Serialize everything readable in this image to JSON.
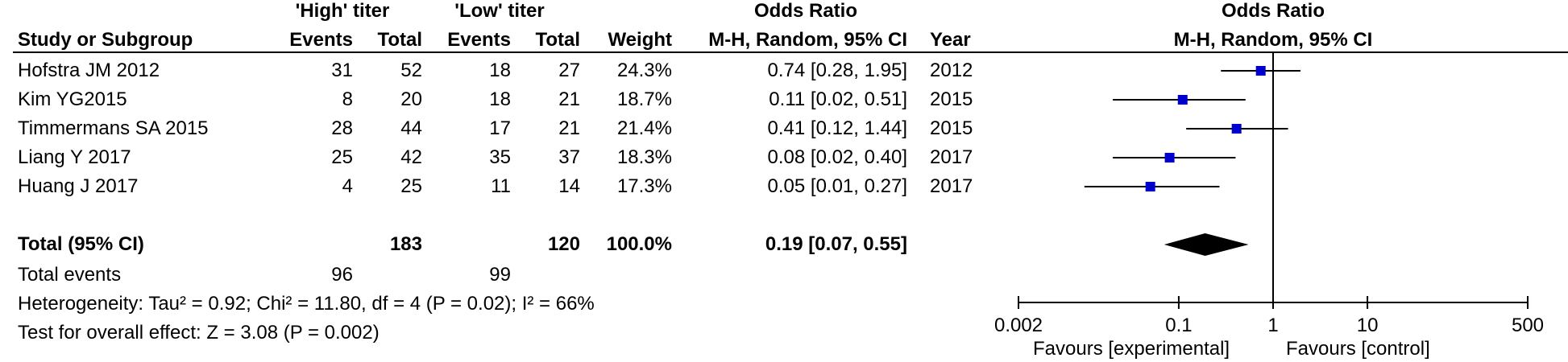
{
  "header": {
    "group_high": "'High' titer",
    "group_low": "'Low' titer",
    "odds_ratio": "Odds Ratio",
    "study_col": "Study or Subgroup",
    "events": "Events",
    "total": "Total",
    "weight": "Weight",
    "method": "M-H, Random, 95% CI",
    "year": "Year",
    "plot_title": "Odds Ratio",
    "plot_method": "M-H, Random, 95% CI"
  },
  "rows": [
    {
      "study": "Hofstra JM 2012",
      "high_events": "31",
      "high_total": "52",
      "low_events": "18",
      "low_total": "27",
      "weight": "24.3%",
      "or_text": "0.74 [0.28, 1.95]",
      "year": "2012"
    },
    {
      "study": "Kim YG2015",
      "high_events": "8",
      "high_total": "20",
      "low_events": "18",
      "low_total": "21",
      "weight": "18.7%",
      "or_text": "0.11 [0.02, 0.51]",
      "year": "2015"
    },
    {
      "study": "Timmermans SA 2015",
      "high_events": "28",
      "high_total": "44",
      "low_events": "17",
      "low_total": "21",
      "weight": "21.4%",
      "or_text": "0.41 [0.12, 1.44]",
      "year": "2015"
    },
    {
      "study": "Liang Y 2017",
      "high_events": "25",
      "high_total": "42",
      "low_events": "35",
      "low_total": "37",
      "weight": "18.3%",
      "or_text": "0.08 [0.02, 0.40]",
      "year": "2017"
    },
    {
      "study": "Huang J 2017",
      "high_events": "4",
      "high_total": "25",
      "low_events": "11",
      "low_total": "14",
      "weight": "17.3%",
      "or_text": "0.05 [0.01, 0.27]",
      "year": "2017"
    }
  ],
  "total": {
    "label": "Total (95% CI)",
    "high_total": "183",
    "low_total": "120",
    "weight": "100.0%",
    "or_text": "0.19 [0.07, 0.55]"
  },
  "total_events": {
    "label": "Total events",
    "high": "96",
    "low": "99"
  },
  "heterogeneity": "Heterogeneity: Tau² = 0.92; Chi² = 11.80, df = 4 (P = 0.02); I² = 66%",
  "overall_effect": "Test for overall effect: Z = 3.08 (P = 0.002)",
  "favours_left": "Favours [experimental]",
  "favours_right": "Favours [control]",
  "colors": {
    "marker": "#0000cc",
    "diamond": "#000000",
    "line": "#000000"
  },
  "chart_data": {
    "type": "forest",
    "scale": "log",
    "xlim": [
      0.002,
      500
    ],
    "ticks": [
      0.002,
      0.1,
      1,
      10,
      500
    ],
    "tick_labels": [
      "0.002",
      "0.1",
      "1",
      "10",
      "500"
    ],
    "null_value": 1,
    "studies": [
      {
        "name": "Hofstra JM 2012",
        "or": 0.74,
        "lo": 0.28,
        "hi": 1.95,
        "weight": 24.3
      },
      {
        "name": "Kim YG2015",
        "or": 0.11,
        "lo": 0.02,
        "hi": 0.51,
        "weight": 18.7
      },
      {
        "name": "Timmermans SA 2015",
        "or": 0.41,
        "lo": 0.12,
        "hi": 1.44,
        "weight": 21.4
      },
      {
        "name": "Liang Y 2017",
        "or": 0.08,
        "lo": 0.02,
        "hi": 0.4,
        "weight": 18.3
      },
      {
        "name": "Huang J 2017",
        "or": 0.05,
        "lo": 0.01,
        "hi": 0.27,
        "weight": 17.3
      }
    ],
    "pooled": {
      "or": 0.19,
      "lo": 0.07,
      "hi": 0.55
    }
  }
}
